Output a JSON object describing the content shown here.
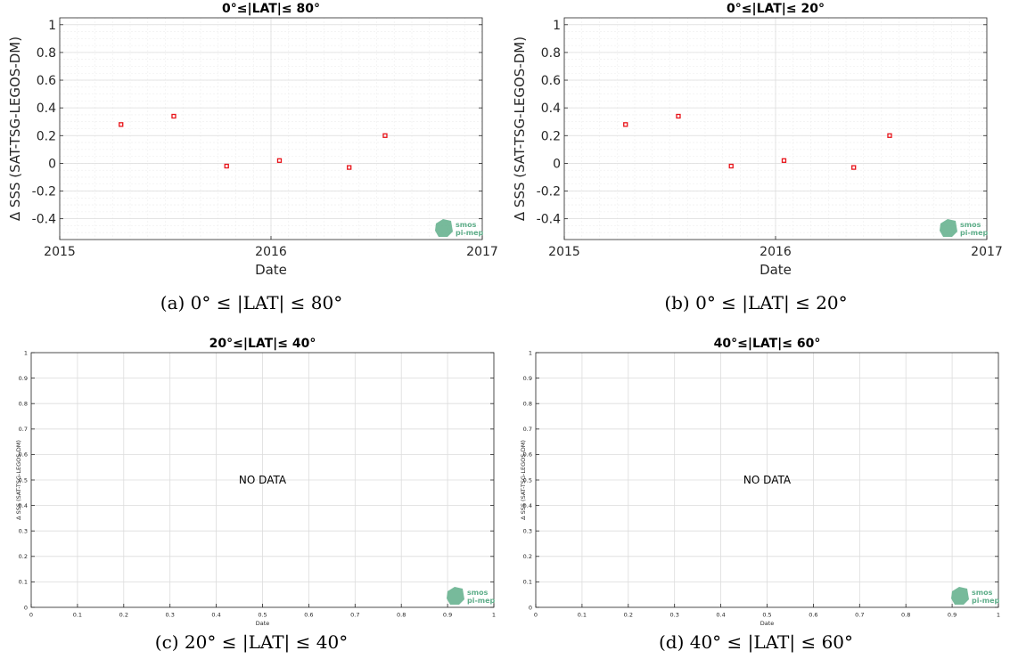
{
  "colors": {
    "marker": "#e8141a",
    "major_grid": "#dcdcdc",
    "minor_grid": "#eeeeee",
    "axis": "#262626",
    "logo": "#5fae8a"
  },
  "logo": {
    "line1": "smos",
    "line2": "pi-mep"
  },
  "chart_data": [
    {
      "type": "scatter",
      "title": "0°≤|LAT|≤ 80°",
      "caption": "(a) 0° ≤ |LAT| ≤ 80°",
      "xlabel": "Date",
      "ylabel": "Δ SSS (SAT-TSG-LEGOS-DM)",
      "xlim": [
        2015.0,
        2017.0
      ],
      "ylim": [
        -0.55,
        1.05
      ],
      "xticks": [
        2015,
        2016,
        2017
      ],
      "xtick_labels": [
        "2015",
        "2016",
        "2017"
      ],
      "yticks": [
        -0.4,
        -0.2,
        0,
        0.2,
        0.4,
        0.6,
        0.8,
        1
      ],
      "ytick_labels": [
        "-0.4",
        "-0.2",
        "0",
        "0.2",
        "0.4",
        "0.6",
        "0.8",
        "1"
      ],
      "grid": true,
      "series": [
        {
          "x": [
            2015.29,
            2015.54,
            2015.79,
            2016.04,
            2016.37,
            2016.54
          ],
          "y": [
            0.28,
            0.34,
            -0.02,
            0.02,
            -0.03,
            0.2
          ]
        }
      ]
    },
    {
      "type": "scatter",
      "title": "0°≤|LAT|≤ 20°",
      "caption": "(b) 0° ≤ |LAT| ≤ 20°",
      "xlabel": "Date",
      "ylabel": "Δ SSS (SAT-TSG-LEGOS-DM)",
      "xlim": [
        2015.0,
        2017.0
      ],
      "ylim": [
        -0.55,
        1.05
      ],
      "xticks": [
        2015,
        2016,
        2017
      ],
      "xtick_labels": [
        "2015",
        "2016",
        "2017"
      ],
      "yticks": [
        -0.4,
        -0.2,
        0,
        0.2,
        0.4,
        0.6,
        0.8,
        1
      ],
      "ytick_labels": [
        "-0.4",
        "-0.2",
        "0",
        "0.2",
        "0.4",
        "0.6",
        "0.8",
        "1"
      ],
      "grid": true,
      "series": [
        {
          "x": [
            2015.29,
            2015.54,
            2015.79,
            2016.04,
            2016.37,
            2016.54
          ],
          "y": [
            0.28,
            0.34,
            -0.02,
            0.02,
            -0.03,
            0.2
          ]
        }
      ]
    },
    {
      "type": "scatter",
      "title": "20°≤|LAT|≤ 40°",
      "caption": "(c) 20° ≤ |LAT| ≤ 40°",
      "xlabel": "Date",
      "ylabel": "Δ SSS (SAT-TSG-LEGOS-DM)",
      "xlim": [
        0,
        1
      ],
      "ylim": [
        0,
        1
      ],
      "xticks": [
        0,
        0.1,
        0.2,
        0.3,
        0.4,
        0.5,
        0.6,
        0.7,
        0.8,
        0.9,
        1
      ],
      "xtick_labels": [
        "0",
        "0.1",
        "0.2",
        "0.3",
        "0.4",
        "0.5",
        "0.6",
        "0.7",
        "0.8",
        "0.9",
        "1"
      ],
      "yticks": [
        0,
        0.1,
        0.2,
        0.3,
        0.4,
        0.5,
        0.6,
        0.7,
        0.8,
        0.9,
        1
      ],
      "ytick_labels": [
        "0",
        "0.1",
        "0.2",
        "0.3",
        "0.4",
        "0.5",
        "0.6",
        "0.7",
        "0.8",
        "0.9",
        "1"
      ],
      "grid": true,
      "annotation": "NO DATA",
      "series": []
    },
    {
      "type": "scatter",
      "title": "40°≤|LAT|≤ 60°",
      "caption": "(d) 40° ≤ |LAT| ≤ 60°",
      "xlabel": "Date",
      "ylabel": "Δ SSS (SAT-TSG-LEGOS-DM)",
      "xlim": [
        0,
        1
      ],
      "ylim": [
        0,
        1
      ],
      "xticks": [
        0,
        0.1,
        0.2,
        0.3,
        0.4,
        0.5,
        0.6,
        0.7,
        0.8,
        0.9,
        1
      ],
      "xtick_labels": [
        "0",
        "0.1",
        "0.2",
        "0.3",
        "0.4",
        "0.5",
        "0.6",
        "0.7",
        "0.8",
        "0.9",
        "1"
      ],
      "yticks": [
        0,
        0.1,
        0.2,
        0.3,
        0.4,
        0.5,
        0.6,
        0.7,
        0.8,
        0.9,
        1
      ],
      "ytick_labels": [
        "0",
        "0.1",
        "0.2",
        "0.3",
        "0.4",
        "0.5",
        "0.6",
        "0.7",
        "0.8",
        "0.9",
        "1"
      ],
      "grid": true,
      "annotation": "NO DATA",
      "series": []
    }
  ]
}
